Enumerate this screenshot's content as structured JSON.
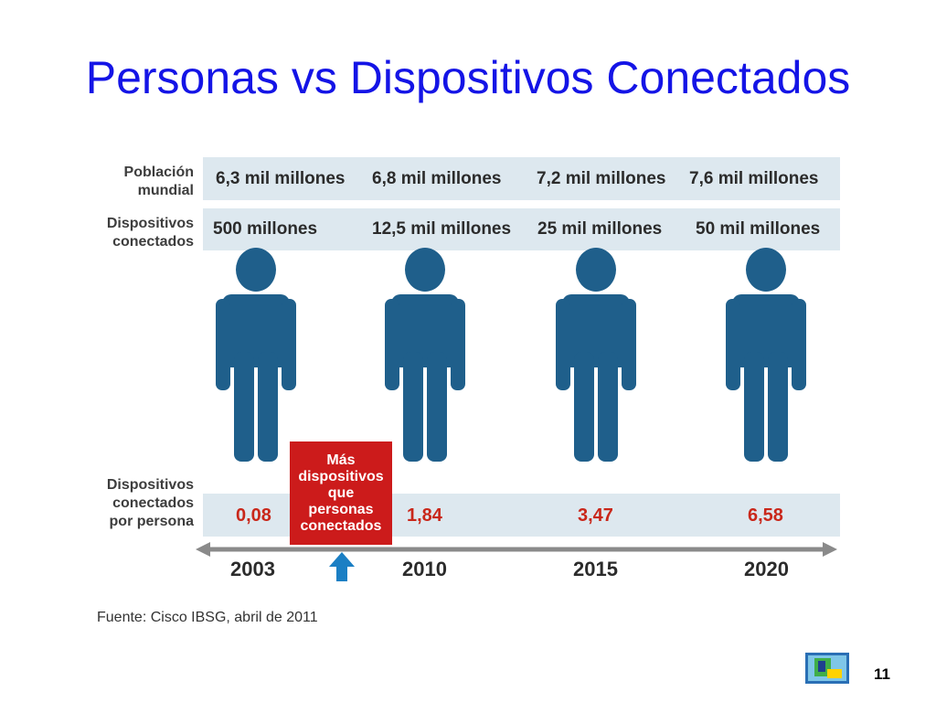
{
  "title": "Personas vs Dispositivos Conectados",
  "rows": {
    "population_label": "Población\nmundial",
    "devices_label": "Dispositivos\nconectados",
    "ratio_label": "Dispositivos\nconectados\npor persona"
  },
  "columns": [
    {
      "year": "2003",
      "population": "6,3 mil millones",
      "devices": "500 millones",
      "ratio": "0,08"
    },
    {
      "year": "2010",
      "population": "6,8 mil millones",
      "devices": "12,5 mil millones",
      "ratio": "1,84"
    },
    {
      "year": "2015",
      "population": "7,2 mil millones",
      "devices": "25 mil millones",
      "ratio": "3,47"
    },
    {
      "year": "2020",
      "population": "7,6 mil millones",
      "devices": "50 mil millones",
      "ratio": "6,58"
    }
  ],
  "callout": "Más\ndispositivos\nque\npersonas\nconectados",
  "source": "Fuente: Cisco IBSG, abril de 2011",
  "page_number": "11",
  "colors": {
    "title": "#1414e6",
    "figure": "#1f5f8b",
    "band": "#dde8ef",
    "ratio": "#c9271a",
    "callout": "#cc1b1b",
    "arrow": "#1b7fc4"
  },
  "icons": [
    "person-icon",
    "up-arrow-icon",
    "logo-icon"
  ]
}
